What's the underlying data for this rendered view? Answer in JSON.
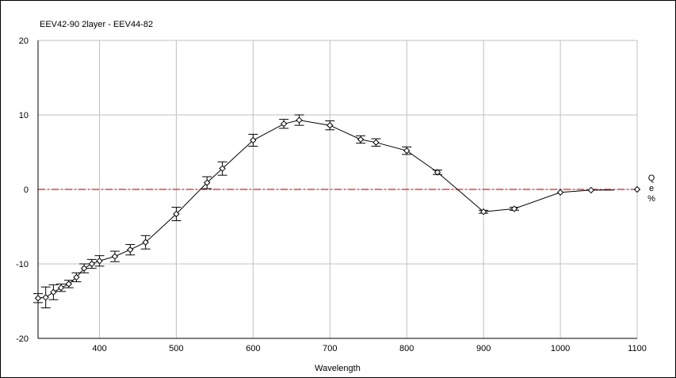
{
  "chart_data": {
    "type": "line",
    "title": "EEV42-90 2layer  -  EEV44-82",
    "xlabel": "Wavelength",
    "ylabel": [
      "Q",
      "e",
      "%"
    ],
    "xlim": [
      320,
      1100
    ],
    "ylim": [
      -20,
      20
    ],
    "x_ticks": [
      400,
      500,
      600,
      700,
      800,
      900,
      1000,
      1100
    ],
    "y_ticks": [
      20,
      10,
      0,
      -10,
      -20
    ],
    "grid": true,
    "reference_line": {
      "y": 0,
      "color": "#d42020",
      "style": "dash-dot"
    },
    "series": [
      {
        "color": "#000000",
        "marker": "diamond",
        "points": [
          {
            "x": 320,
            "y": -14.6,
            "err": 0.6
          },
          {
            "x": 330,
            "y": -14.5,
            "err": 1.4
          },
          {
            "x": 340,
            "y": -13.8,
            "err": 1.0
          },
          {
            "x": 350,
            "y": -13.2,
            "err": 0.5
          },
          {
            "x": 360,
            "y": -12.7,
            "err": 0.5
          },
          {
            "x": 370,
            "y": -11.8,
            "err": 0.6
          },
          {
            "x": 380,
            "y": -10.6,
            "err": 0.6
          },
          {
            "x": 390,
            "y": -10.0,
            "err": 0.6
          },
          {
            "x": 400,
            "y": -9.6,
            "err": 0.7
          },
          {
            "x": 420,
            "y": -9.0,
            "err": 0.7
          },
          {
            "x": 440,
            "y": -8.1,
            "err": 0.7
          },
          {
            "x": 460,
            "y": -7.1,
            "err": 0.9
          },
          {
            "x": 500,
            "y": -3.3,
            "err": 0.9
          },
          {
            "x": 540,
            "y": 0.9,
            "err": 0.8
          },
          {
            "x": 560,
            "y": 2.8,
            "err": 0.9
          },
          {
            "x": 600,
            "y": 6.6,
            "err": 0.8
          },
          {
            "x": 640,
            "y": 8.8,
            "err": 0.6
          },
          {
            "x": 660,
            "y": 9.3,
            "err": 0.7
          },
          {
            "x": 700,
            "y": 8.6,
            "err": 0.6
          },
          {
            "x": 740,
            "y": 6.7,
            "err": 0.5
          },
          {
            "x": 760,
            "y": 6.3,
            "err": 0.5
          },
          {
            "x": 800,
            "y": 5.2,
            "err": 0.5
          },
          {
            "x": 840,
            "y": 2.3,
            "err": 0.3
          },
          {
            "x": 900,
            "y": -3.0,
            "err": 0.2
          },
          {
            "x": 940,
            "y": -2.6,
            "err": 0.2
          },
          {
            "x": 1000,
            "y": -0.4,
            "err": 0
          },
          {
            "x": 1040,
            "y": -0.1,
            "err": 0
          },
          {
            "x": 1070,
            "y": -0.1,
            "err": 0,
            "marker": false
          },
          {
            "x": 1100,
            "y": 0.0,
            "err": 0,
            "connected": false
          }
        ]
      }
    ]
  }
}
